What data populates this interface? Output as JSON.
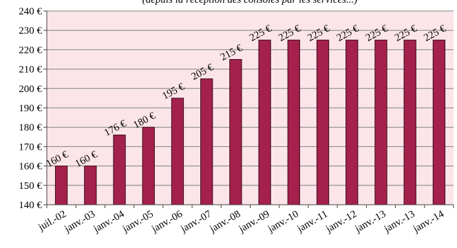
{
  "chart_data": {
    "type": "bar",
    "title": "(depuis la réception des consoles par les services...)",
    "categories": [
      "juil.-02",
      "janv.-03",
      "janv.-04",
      "janv.-05",
      "janv.-06",
      "janv.-07",
      "janv.-08",
      "janv.-09",
      "janv.-10",
      "janv.-11",
      "janv.-12",
      "janv.-13",
      "janv.-13",
      "janv.-14"
    ],
    "values": [
      160,
      160,
      176,
      180,
      195,
      205,
      215,
      225,
      225,
      225,
      225,
      225,
      225,
      225
    ],
    "data_labels": [
      "160 €",
      "160 €",
      "176 €",
      "180 €",
      "195 €",
      "205 €",
      "215 €",
      "225 €",
      "225 €",
      "225 €",
      "225 €",
      "225 €",
      "225 €",
      "225 €"
    ],
    "y_ticks": [
      "140 €",
      "150 €",
      "160 €",
      "170 €",
      "180 €",
      "190 €",
      "200 €",
      "210 €",
      "220 €",
      "230 €",
      "240 €"
    ],
    "ylim": [
      140,
      240
    ],
    "xlabel": "",
    "ylabel": "",
    "grid": true,
    "legend": "none",
    "colors": {
      "bar": "#a4204d",
      "bar_stroke": "#3b0d1c",
      "plot_background": "#fbe5e9",
      "grid": "#808080",
      "axis": "#404040"
    }
  }
}
